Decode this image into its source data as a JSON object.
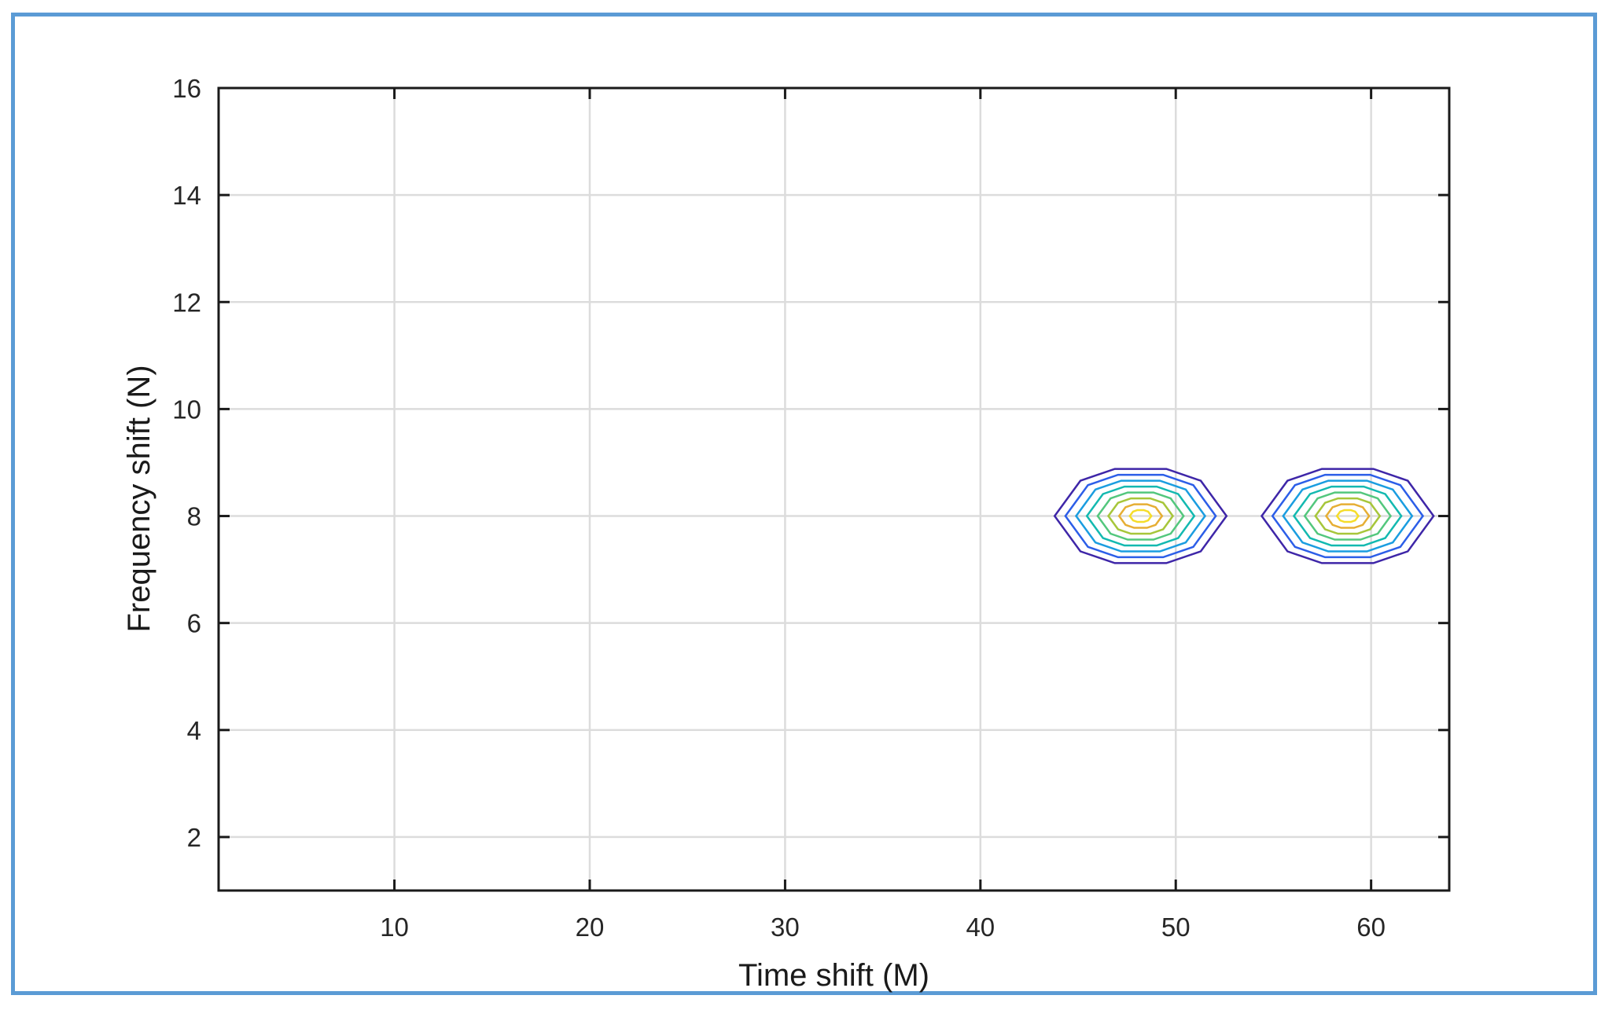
{
  "chart_data": {
    "type": "contour",
    "xlabel": "Time shift (M)",
    "ylabel": "Frequency shift (N)",
    "xlim": [
      1,
      64
    ],
    "ylim": [
      1,
      16
    ],
    "x_ticks": [
      10,
      20,
      30,
      40,
      50,
      60
    ],
    "y_ticks": [
      2,
      4,
      6,
      8,
      10,
      12,
      14,
      16
    ],
    "grid": true,
    "colormap": [
      "#3e26a8",
      "#2c5ee8",
      "#1a9de0",
      "#13b9b0",
      "#53c77d",
      "#a7c63a",
      "#e6ae34",
      "#f5dd2a"
    ],
    "peaks": [
      {
        "x": 48.2,
        "y": 8,
        "levels": 8
      },
      {
        "x": 58.8,
        "y": 8,
        "levels": 8
      }
    ]
  }
}
